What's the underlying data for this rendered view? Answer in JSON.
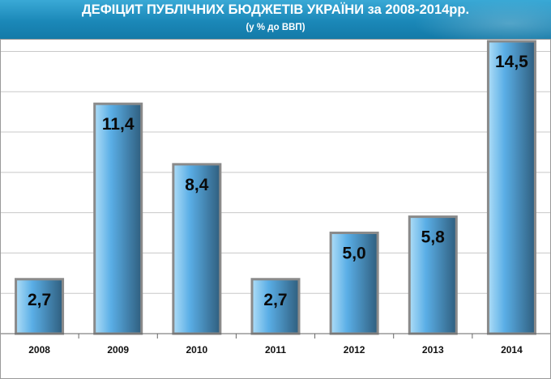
{
  "header": {
    "title": "ДЕФІЦИТ  ПУБЛІЧНИХ БЮДЖЕТІВ УКРАЇНИ за  2008-2014рр.",
    "subtitle": "(у % до ВВП)"
  },
  "colors": {
    "header_bg": "#1b88b8",
    "bar_light": "#aeddf7",
    "bar_mid": "#5aaee6",
    "bar_dark": "#2f5e7e",
    "bar_top": "#8a8a8a"
  },
  "chart_data": {
    "type": "bar",
    "title": "ДЕФІЦИТ  ПУБЛІЧНИХ БЮДЖЕТІВ УКРАЇНИ за  2008-2014рр.",
    "subtitle": "(у % до ВВП)",
    "categories": [
      "2008",
      "2009",
      "2010",
      "2011",
      "2012",
      "2013",
      "2014"
    ],
    "values": [
      2.7,
      11.4,
      8.4,
      2.7,
      5.0,
      5.8,
      14.5
    ],
    "value_labels": [
      "2,7",
      "11,4",
      "8,4",
      "2,7",
      "5,0",
      "5,8",
      "14,5"
    ],
    "xlabel": "",
    "ylabel": "",
    "ylim": [
      0,
      14.5
    ],
    "grid": true,
    "legend": "none"
  }
}
